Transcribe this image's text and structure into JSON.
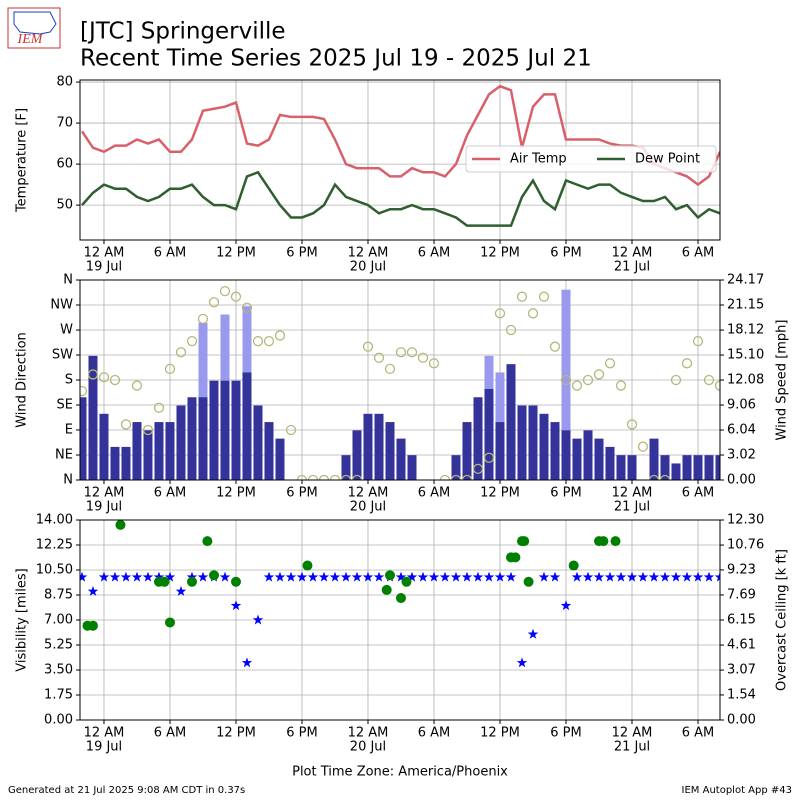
{
  "header": {
    "logo_text": "IEM",
    "title": "[JTC] Springerville",
    "subtitle": "Recent Time Series 2025 Jul 19 - 2025 Jul 21"
  },
  "footer": {
    "left": "Generated at 21 Jul 2025 9:08 AM CDT in 0.37s",
    "right": "IEM Autoplot App #43"
  },
  "chart_data": [
    {
      "type": "line",
      "ylabel": "Temperature [F]",
      "grid": true,
      "legend": "upper right",
      "x": [
        -2,
        -1,
        0,
        1,
        2,
        3,
        4,
        5,
        6,
        7,
        8,
        9,
        10,
        11,
        12,
        13,
        14,
        15,
        16,
        17,
        18,
        19,
        20,
        21,
        22,
        23,
        24,
        25,
        26,
        27,
        28,
        29,
        30,
        31,
        32,
        33,
        34,
        35,
        36,
        37,
        38,
        39,
        40,
        41,
        42,
        43,
        44,
        45,
        46,
        47,
        48,
        49,
        50,
        51,
        52,
        53,
        54,
        55,
        56
      ],
      "xlim": [
        -2.18,
        56
      ],
      "xticks": [
        {
          "value": 0,
          "label": "12 AM"
        },
        {
          "value": 6,
          "label": "6 AM"
        },
        {
          "value": 12,
          "label": "12 PM"
        },
        {
          "value": 18,
          "label": "6 PM"
        },
        {
          "value": 24,
          "label": "12 AM"
        },
        {
          "value": 30,
          "label": "6 AM"
        },
        {
          "value": 36,
          "label": "12 PM"
        },
        {
          "value": 42,
          "label": "6 PM"
        },
        {
          "value": 48,
          "label": "12 AM"
        },
        {
          "value": 54,
          "label": "6 AM"
        }
      ],
      "xtick_dates": [
        {
          "value": 0,
          "label": "19 Jul"
        },
        {
          "value": 24,
          "label": "20 Jul"
        },
        {
          "value": 48,
          "label": "21 Jul"
        }
      ],
      "ylim": [
        41.5,
        80.5
      ],
      "yticks": [
        50,
        60,
        70,
        80
      ],
      "series": [
        {
          "name": "Air Temp",
          "color": "#d9606a",
          "values": [
            68,
            64,
            63,
            64.5,
            64.5,
            66,
            65,
            66,
            63,
            63,
            66,
            73,
            73.5,
            74,
            75,
            65,
            64.5,
            66,
            72,
            71.5,
            71.5,
            71.5,
            71,
            66,
            60,
            59,
            59,
            59,
            57,
            57,
            59,
            58,
            58,
            57,
            60,
            67,
            72,
            77,
            79,
            78,
            64,
            74,
            77,
            77,
            66,
            66,
            66,
            66,
            65,
            64.5,
            64.5,
            64,
            60,
            59,
            58,
            57,
            55,
            57,
            63
          ]
        },
        {
          "name": "Dew Point",
          "color": "#2f5e2f",
          "values": [
            50,
            53,
            55,
            54,
            54,
            52,
            51,
            52,
            54,
            54,
            55,
            52,
            50,
            50,
            49,
            57,
            58,
            54,
            50,
            47,
            47,
            48,
            50,
            55,
            52,
            51,
            50,
            48,
            49,
            49,
            50,
            49,
            49,
            48,
            47,
            45,
            45,
            45,
            45,
            45,
            52,
            56,
            51,
            49,
            56,
            55,
            54,
            55,
            55,
            53,
            52,
            51,
            51,
            52,
            49,
            50,
            47,
            49,
            48
          ]
        }
      ]
    },
    {
      "type": "bar",
      "ylabel": "Wind Direction",
      "y2label": "Wind Speed [mph]",
      "grid": true,
      "x": [
        -2,
        -1,
        0,
        1,
        2,
        3,
        4,
        5,
        6,
        7,
        8,
        9,
        10,
        11,
        12,
        13,
        14,
        15,
        16,
        17,
        18,
        19,
        20,
        21,
        22,
        23,
        24,
        25,
        26,
        27,
        28,
        29,
        30,
        31,
        32,
        33,
        34,
        35,
        36,
        37,
        38,
        39,
        40,
        41,
        42,
        43,
        44,
        45,
        46,
        47,
        48,
        49,
        50,
        51,
        52,
        53,
        54,
        55,
        56
      ],
      "xlim": [
        -2.18,
        56
      ],
      "xticks": [
        {
          "value": 0,
          "label": "12 AM"
        },
        {
          "value": 6,
          "label": "6 AM"
        },
        {
          "value": 12,
          "label": "12 PM"
        },
        {
          "value": 18,
          "label": "6 PM"
        },
        {
          "value": 24,
          "label": "12 AM"
        },
        {
          "value": 30,
          "label": "6 AM"
        },
        {
          "value": 36,
          "label": "12 PM"
        },
        {
          "value": 42,
          "label": "6 PM"
        },
        {
          "value": 48,
          "label": "12 AM"
        },
        {
          "value": 54,
          "label": "6 AM"
        }
      ],
      "xtick_dates": [
        {
          "value": 0,
          "label": "19 Jul"
        },
        {
          "value": 24,
          "label": "20 Jul"
        },
        {
          "value": 48,
          "label": "21 Jul"
        }
      ],
      "ylim": [
        0,
        360
      ],
      "yticks": [
        {
          "value": 0,
          "label": "N"
        },
        {
          "value": 45,
          "label": "NE"
        },
        {
          "value": 90,
          "label": "E"
        },
        {
          "value": 135,
          "label": "SE"
        },
        {
          "value": 180,
          "label": "S"
        },
        {
          "value": 225,
          "label": "SW"
        },
        {
          "value": 270,
          "label": "W"
        },
        {
          "value": 315,
          "label": "NW"
        },
        {
          "value": 360,
          "label": "N"
        }
      ],
      "y2lim": [
        0,
        24.17
      ],
      "y2ticks": [
        {
          "value": 0,
          "label": "0.00"
        },
        3.02,
        6.04,
        9.06,
        12.08,
        {
          "value": 15.1,
          "label": "15.10"
        },
        18.12,
        21.15,
        24.17
      ],
      "series": [
        {
          "type": "bar",
          "axis": "y2",
          "color": "#9999ee",
          "values": [
            null,
            null,
            null,
            null,
            null,
            null,
            null,
            null,
            null,
            null,
            null,
            19,
            null,
            20,
            null,
            21,
            null,
            null,
            null,
            null,
            null,
            null,
            null,
            null,
            null,
            null,
            null,
            null,
            null,
            null,
            null,
            null,
            null,
            null,
            null,
            null,
            null,
            15,
            13,
            null,
            null,
            null,
            null,
            null,
            23,
            null,
            null,
            null,
            null,
            null,
            null,
            null,
            null,
            null,
            null,
            null,
            null,
            null,
            null
          ]
        },
        {
          "type": "bar",
          "axis": "y2",
          "color": "#333399",
          "values": [
            10,
            15,
            8,
            4,
            4,
            7,
            6,
            7,
            7,
            9,
            10,
            10,
            12,
            12,
            12,
            13,
            9,
            7,
            5,
            0,
            0,
            0,
            0,
            0,
            3,
            6,
            8,
            8,
            7,
            5,
            3,
            0,
            0,
            0,
            3,
            7,
            10,
            11,
            7,
            14,
            9,
            9,
            8,
            7,
            6,
            5,
            6,
            5,
            4,
            3,
            3,
            0,
            5,
            3,
            2,
            3,
            3,
            3,
            3
          ]
        },
        {
          "type": "scatter",
          "marker": "hollow",
          "color": "#b5b87a",
          "values": [
            160,
            190,
            185,
            180,
            100,
            170,
            90,
            130,
            200,
            230,
            250,
            290,
            320,
            340,
            330,
            310,
            250,
            250,
            260,
            90,
            0,
            0,
            0,
            0,
            0,
            0,
            240,
            220,
            200,
            230,
            230,
            220,
            210,
            0,
            0,
            0,
            20,
            40,
            300,
            270,
            330,
            300,
            330,
            240,
            180,
            170,
            180,
            190,
            210,
            170,
            100,
            60,
            0,
            0,
            180,
            210,
            250,
            180,
            170
          ]
        }
      ]
    },
    {
      "type": "scatter",
      "ylabel": "Visibility [miles]",
      "y2label": "Overcast Ceiling [k ft]",
      "y2label_color": "#008000",
      "xlabel": "Plot Time Zone: America/Phoenix",
      "grid": true,
      "x": [
        -2,
        -1,
        0,
        1,
        2,
        3,
        4,
        5,
        6,
        7,
        8,
        9,
        10,
        11,
        12,
        13,
        14,
        15,
        16,
        17,
        18,
        19,
        20,
        21,
        22,
        23,
        24,
        25,
        26,
        27,
        28,
        29,
        30,
        31,
        32,
        33,
        34,
        35,
        36,
        37,
        38,
        39,
        40,
        41,
        42,
        43,
        44,
        45,
        46,
        47,
        48,
        49,
        50,
        51,
        52,
        53,
        54,
        55,
        56
      ],
      "xlim": [
        -2.18,
        56
      ],
      "xticks": [
        {
          "value": 0,
          "label": "12 AM"
        },
        {
          "value": 6,
          "label": "6 AM"
        },
        {
          "value": 12,
          "label": "12 PM"
        },
        {
          "value": 18,
          "label": "6 PM"
        },
        {
          "value": 24,
          "label": "12 AM"
        },
        {
          "value": 30,
          "label": "6 AM"
        },
        {
          "value": 36,
          "label": "12 PM"
        },
        {
          "value": 42,
          "label": "6 PM"
        },
        {
          "value": 48,
          "label": "12 AM"
        },
        {
          "value": 54,
          "label": "6 AM"
        }
      ],
      "xtick_dates": [
        {
          "value": 0,
          "label": "19 Jul"
        },
        {
          "value": 24,
          "label": "20 Jul"
        },
        {
          "value": 48,
          "label": "21 Jul"
        }
      ],
      "ylim": [
        0,
        14
      ],
      "yticks": [
        {
          "value": 0,
          "label": "0.00"
        },
        1.75,
        {
          "value": 3.5,
          "label": "3.50"
        },
        5.25,
        {
          "value": 7,
          "label": "7.00"
        },
        8.75,
        {
          "value": 10.5,
          "label": "10.50"
        },
        12.25,
        {
          "value": 14,
          "label": "14.00"
        }
      ],
      "y2lim": [
        0,
        12.3
      ],
      "y2ticks": [
        {
          "value": 0,
          "label": "0.00"
        },
        1.54,
        3.07,
        4.61,
        6.15,
        7.69,
        9.23,
        10.76,
        {
          "value": 12.3,
          "label": "12.30"
        }
      ],
      "series": [
        {
          "type": "scatter",
          "marker": "star",
          "color": "#0000ff",
          "values": [
            10,
            9,
            10,
            10,
            10,
            10,
            10,
            10,
            10,
            9,
            10,
            10,
            10,
            10,
            8,
            4,
            7,
            10,
            10,
            10,
            10,
            10,
            10,
            10,
            10,
            10,
            10,
            10,
            10,
            10,
            10,
            10,
            10,
            10,
            10,
            10,
            10,
            10,
            10,
            10,
            4,
            6,
            10,
            10,
            8,
            10,
            10,
            10,
            10,
            10,
            10,
            10,
            10,
            10,
            10,
            10,
            10,
            10,
            10
          ]
        },
        {
          "type": "scatter",
          "marker": "circle",
          "axis": "y2",
          "color": "#008000",
          "x": [
            -1.5,
            -1,
            1.5,
            5,
            5.5,
            6,
            8,
            9.4,
            10,
            12,
            18.5,
            25.7,
            26,
            27,
            27.5,
            37,
            37.4,
            38,
            38.2,
            38.6,
            42.7,
            45,
            45.4,
            46.5
          ],
          "values": [
            5.8,
            5.8,
            12.0,
            8.5,
            8.5,
            6.0,
            8.5,
            11.0,
            8.9,
            8.5,
            9.5,
            8.0,
            8.9,
            7.5,
            8.5,
            10.0,
            10.0,
            11.0,
            11.0,
            8.5,
            9.5,
            11.0,
            11.0,
            11.0
          ]
        }
      ]
    }
  ]
}
